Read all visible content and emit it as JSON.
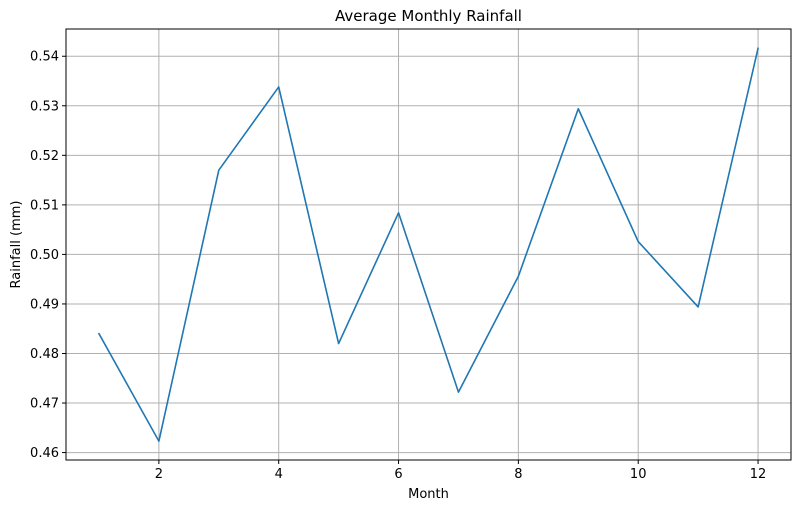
{
  "chart_data": {
    "type": "line",
    "title": "Average Monthly Rainfall",
    "xlabel": "Month",
    "ylabel": "Rainfall (mm)",
    "xlim": [
      0.45,
      12.55
    ],
    "ylim": [
      0.4585,
      0.5455
    ],
    "xticks": [
      2,
      4,
      6,
      8,
      10,
      12
    ],
    "yticks": [
      0.46,
      0.47,
      0.48,
      0.49,
      0.5,
      0.51,
      0.52,
      0.53,
      0.54
    ],
    "ytick_labels": [
      "0.46",
      "0.47",
      "0.48",
      "0.49",
      "0.50",
      "0.51",
      "0.52",
      "0.53",
      "0.54"
    ],
    "grid": true,
    "series": [
      {
        "color": "#1f77b4",
        "x": [
          1,
          2,
          3,
          4,
          5,
          6,
          7,
          8,
          9,
          10,
          11,
          12
        ],
        "values": [
          0.484,
          0.4623,
          0.517,
          0.5338,
          0.482,
          0.5084,
          0.4722,
          0.4956,
          0.5294,
          0.5026,
          0.4894,
          0.5416
        ]
      }
    ]
  }
}
